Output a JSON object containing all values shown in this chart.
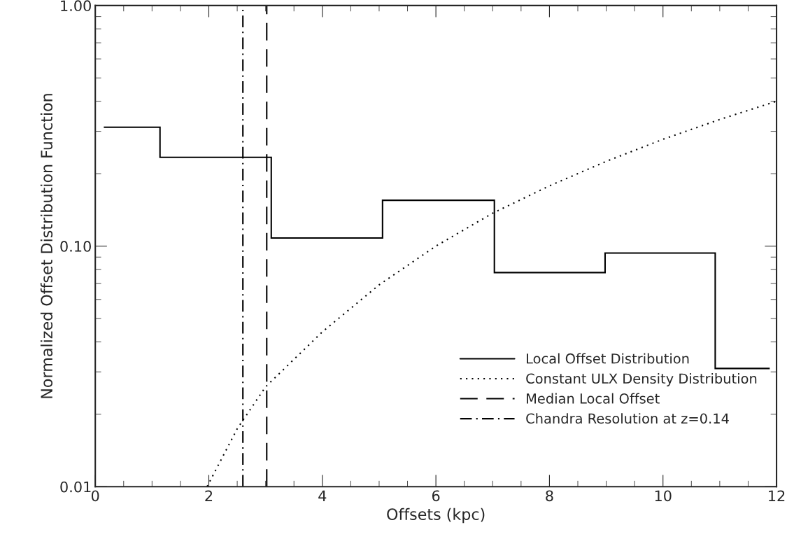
{
  "chart_data": {
    "type": "histogram",
    "xlabel": "Offsets (kpc)",
    "ylabel": "Normalized Offset Distribution Function",
    "log": "y",
    "xlim": [
      0,
      12
    ],
    "xticks": [
      0,
      2,
      4,
      6,
      8,
      10,
      12
    ],
    "ylim": [
      0.01,
      1.0
    ],
    "yticks": [
      {
        "value": 0.01,
        "label": "0.01"
      },
      {
        "value": 0.1,
        "label": "0.10"
      },
      {
        "value": 1.0,
        "label": "1.00"
      }
    ],
    "grid": false,
    "legend": "bottom right",
    "series": [
      {
        "name": "Local Offset Distribution",
        "color": "#000000",
        "line_style": "solid",
        "bins": [
          0.15,
          1.14,
          3.1,
          5.06,
          7.03,
          8.98,
          10.92,
          11.88
        ],
        "values": [
          0.312,
          0.234,
          0.108,
          0.155,
          0.0776,
          0.0935,
          0.031
        ]
      },
      {
        "type": "line",
        "name": "Constant ULX Density Distribution",
        "color": "#000000",
        "line_style": "dotted",
        "x": [
          1.97,
          2.5,
          3,
          4,
          5,
          6,
          7,
          8,
          9,
          10,
          11,
          12
        ],
        "values": [
          0.01,
          0.0174,
          0.026,
          0.044,
          0.069,
          0.1,
          0.137,
          0.178,
          0.225,
          0.278,
          0.336,
          0.4
        ]
      },
      {
        "type": "line",
        "name": "Median Local Offset",
        "color": "#000000",
        "line_style": "dashed",
        "x": [
          3.02,
          3.02
        ],
        "values": [
          0.01,
          1.0
        ]
      },
      {
        "type": "line",
        "name": "Chandra Resolution at z=0.14",
        "color": "#000000",
        "line_style": "dashdot",
        "x": [
          2.6,
          2.6
        ],
        "values": [
          0.01,
          1.0
        ]
      }
    ]
  }
}
